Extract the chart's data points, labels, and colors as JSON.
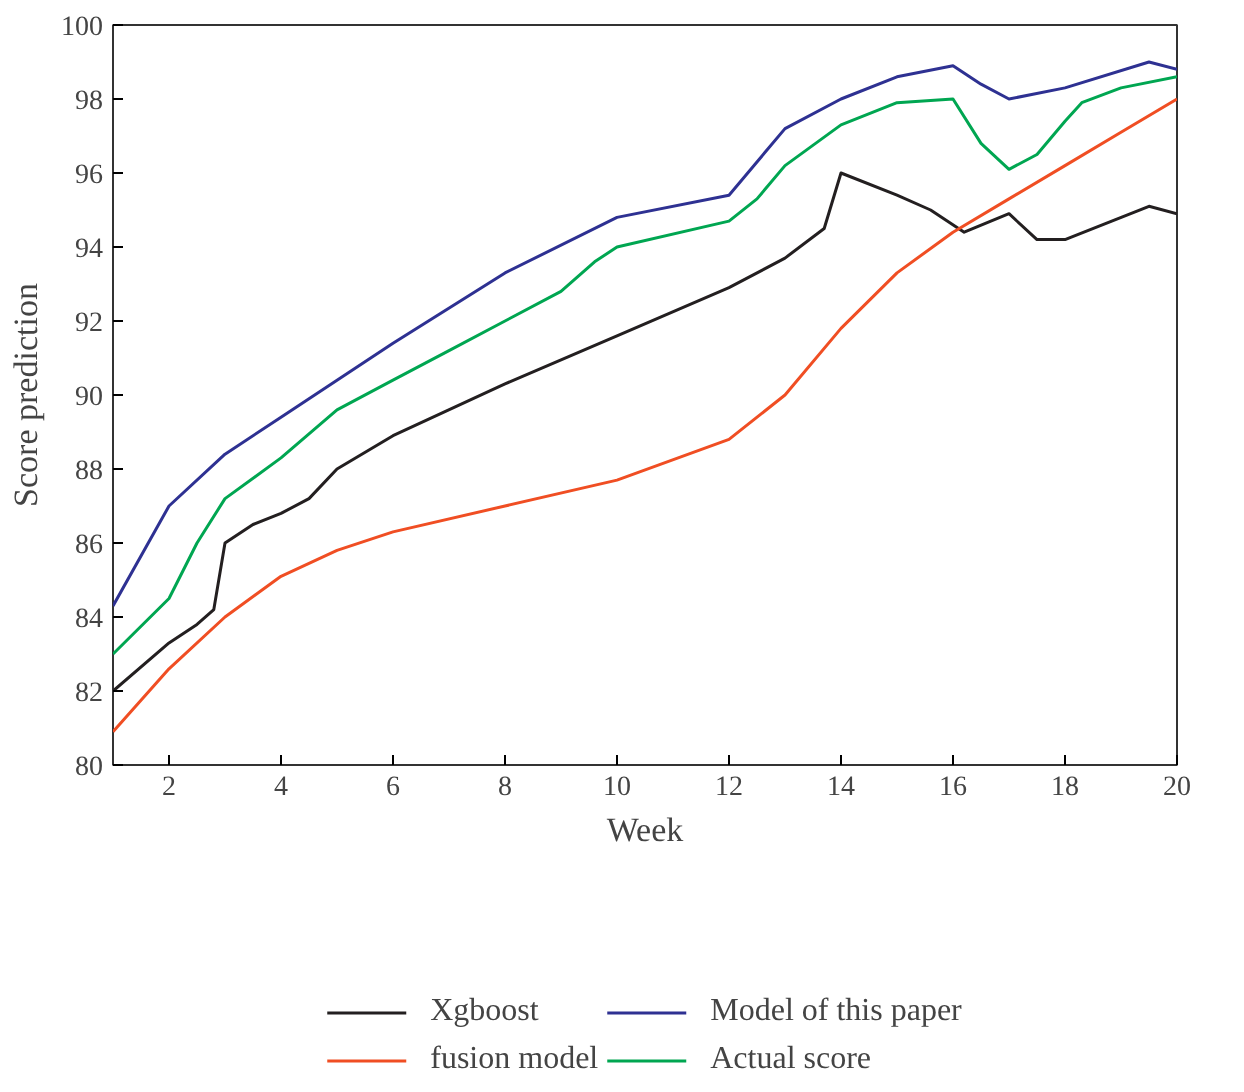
{
  "chart_data": {
    "type": "line",
    "xlabel": "Week",
    "ylabel": "Score prediction",
    "xlim": [
      1,
      20
    ],
    "ylim": [
      80,
      100
    ],
    "xticks": [
      2,
      4,
      6,
      8,
      10,
      12,
      14,
      16,
      18,
      20
    ],
    "yticks": [
      80,
      82,
      84,
      86,
      88,
      90,
      92,
      94,
      96,
      98,
      100
    ],
    "grid": false,
    "legend": "bottom",
    "line_style": "solid",
    "series": [
      {
        "name": "Xgboost",
        "color": "#231f20",
        "x": [
          1,
          2,
          2.5,
          2.8,
          3,
          3.5,
          4,
          4.5,
          5,
          6,
          8,
          10,
          12,
          13,
          13.7,
          14,
          15,
          15.6,
          16.2,
          17,
          17.5,
          18,
          19.5,
          20
        ],
        "values": [
          82,
          83.3,
          83.8,
          84.2,
          86.0,
          86.5,
          86.8,
          87.2,
          88.0,
          88.9,
          90.3,
          91.6,
          92.9,
          93.7,
          94.5,
          96.0,
          95.4,
          95.0,
          94.4,
          94.9,
          94.2,
          94.2,
          95.1,
          94.9
        ]
      },
      {
        "name": "fusion model",
        "color": "#f04e23",
        "x": [
          1,
          2,
          3,
          4,
          5,
          6,
          8,
          10,
          12,
          13,
          14,
          15,
          16,
          17,
          18,
          19,
          20
        ],
        "values": [
          80.9,
          82.6,
          84.0,
          85.1,
          85.8,
          86.3,
          87.0,
          87.7,
          88.8,
          90.0,
          91.8,
          93.3,
          94.4,
          95.3,
          96.2,
          97.1,
          98.0
        ]
      },
      {
        "name": "Model of this paper",
        "color": "#2e3192",
        "x": [
          1,
          2,
          3,
          4,
          5,
          6,
          8,
          10,
          12,
          13,
          14,
          15,
          16,
          16.5,
          17,
          18,
          19.5,
          20
        ],
        "values": [
          84.3,
          87,
          88.4,
          89.4,
          90.4,
          91.4,
          93.3,
          94.8,
          95.4,
          97.2,
          98.0,
          98.6,
          98.9,
          98.4,
          98.0,
          98.3,
          99.0,
          98.8
        ]
      },
      {
        "name": "Actual score",
        "color": "#00a651",
        "x": [
          1,
          2,
          2.5,
          3,
          4,
          5,
          6,
          7,
          8,
          9,
          9.6,
          10,
          12,
          12.5,
          13,
          14,
          15,
          16,
          16.5,
          17,
          17.5,
          18,
          18.3,
          19,
          20
        ],
        "values": [
          83,
          84.5,
          86,
          87.2,
          88.3,
          89.6,
          90.4,
          91.2,
          92.0,
          92.8,
          93.6,
          94.0,
          94.7,
          95.3,
          96.2,
          97.3,
          97.9,
          98.0,
          96.8,
          96.1,
          96.5,
          97.4,
          97.9,
          98.3,
          98.6
        ]
      }
    ]
  }
}
